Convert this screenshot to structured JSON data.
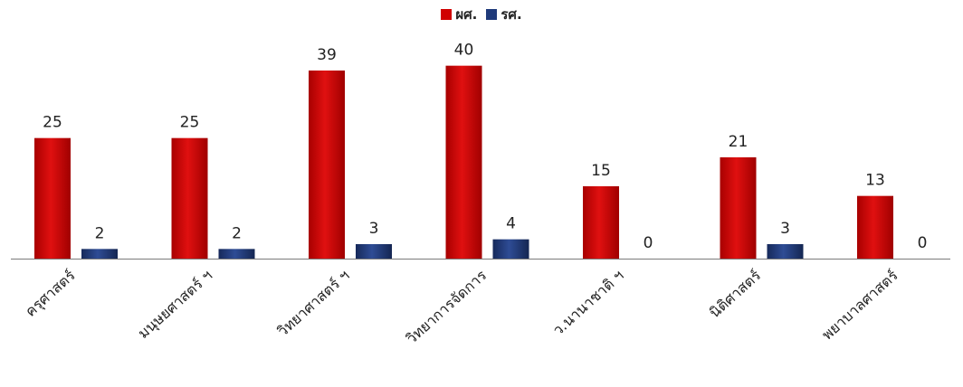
{
  "chart_data": {
    "type": "bar",
    "categories": [
      "ครุศาสตร์",
      "มนุษยศาสตร์ ฯ",
      "วิทยาศาสตร์ ฯ",
      "วิทยาการจัดการ",
      "ว.นานาชาติ ฯ",
      "นิติศาสตร์",
      "พยาบาลศาสตร์"
    ],
    "series": [
      {
        "name": "ผศ.",
        "values": [
          25,
          25,
          39,
          40,
          15,
          21,
          13
        ],
        "color": "#d00000"
      },
      {
        "name": "รศ.",
        "values": [
          2,
          2,
          3,
          4,
          0,
          3,
          0
        ],
        "color": "#1f3a7a"
      }
    ],
    "ylim": [
      0,
      48
    ],
    "legend_position": "top-center",
    "grid": false,
    "data_labels": true
  }
}
